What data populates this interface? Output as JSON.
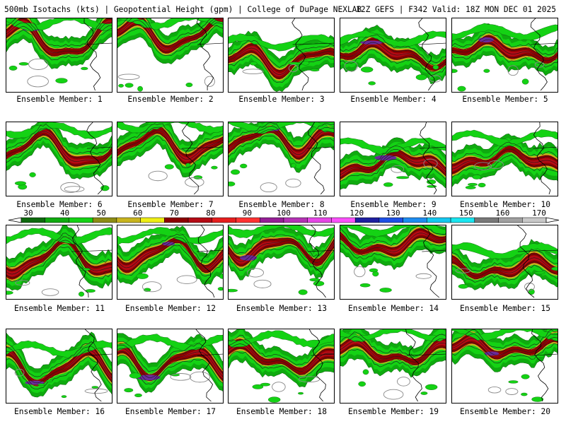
{
  "header": {
    "left": "500mb Isotachs (kts) | Geopotential Height (gpm) | College of DuPage NEXLAB",
    "right": "12Z GEFS | F342 Valid: 18Z MON DEC 01 2025"
  },
  "member_label_prefix": "Ensemble Member:",
  "members": [
    {
      "label": "1"
    },
    {
      "label": "2"
    },
    {
      "label": "3"
    },
    {
      "label": "4"
    },
    {
      "label": "5"
    },
    {
      "label": "6"
    },
    {
      "label": "7"
    },
    {
      "label": "8"
    },
    {
      "label": "9"
    },
    {
      "label": "10"
    },
    {
      "label": "11"
    },
    {
      "label": "12"
    },
    {
      "label": "13"
    },
    {
      "label": "14"
    },
    {
      "label": "15"
    },
    {
      "label": "16"
    },
    {
      "label": "17"
    },
    {
      "label": "18"
    },
    {
      "label": "19"
    },
    {
      "label": "20"
    }
  ],
  "colorbar": {
    "ticks": [
      "30",
      "40",
      "50",
      "60",
      "70",
      "80",
      "90",
      "100",
      "110",
      "120",
      "130",
      "140",
      "150",
      "160",
      "170"
    ],
    "colors": [
      "#0d6a0d",
      "#0faa0f",
      "#14d214",
      "#8c8c14",
      "#c8b41e",
      "#eeee14",
      "#8c0000",
      "#b40a14",
      "#e61e1e",
      "#ff3232",
      "#961e96",
      "#b432b4",
      "#e646e6",
      "#fa50fa",
      "#1e1ea0",
      "#1e50e6",
      "#1e8cf0",
      "#14c8f0",
      "#19e6f0",
      "#787878",
      "#a0a0a0",
      "#c8c8c8"
    ]
  },
  "fill_colors": {
    "weak": "#0faa0f",
    "light": "#14d214",
    "moderate": "#c8b41e",
    "strong": "#8c0000",
    "core": "#b40a14",
    "extreme": "#6a2a9a"
  }
}
